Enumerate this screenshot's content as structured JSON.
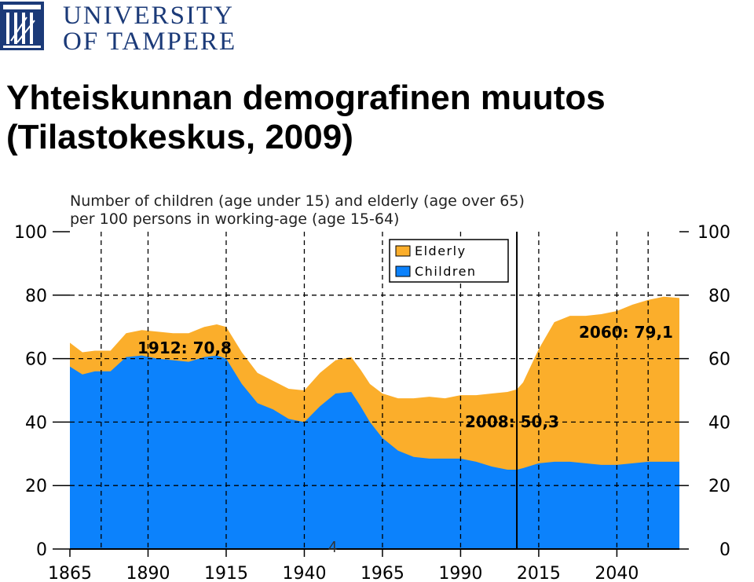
{
  "logo": {
    "line1": "UNIVERSITY",
    "line2": "OF TAMPERE"
  },
  "slide": {
    "title_line1": "Yhteiskunnan demografinen muutos",
    "title_line2": "(Tilastokeskus, 2009)",
    "page_number": "4"
  },
  "colors": {
    "elderly": "#FBAE2B",
    "children": "#0C82FC",
    "logo_blue": "#1b3a78"
  },
  "chart_data": {
    "type": "area",
    "stacked": true,
    "title": "Number of children (age under 15) and elderly (age over 65)",
    "subtitle": "per 100 persons in working-age (age 15-64)",
    "xlim": [
      1865,
      2060
    ],
    "ylim": [
      0,
      100
    ],
    "x_ticks": [
      1865,
      1890,
      1915,
      1940,
      1965,
      1990,
      2015,
      2040
    ],
    "y_ticks": [
      0,
      20,
      40,
      60,
      80,
      100
    ],
    "grid": true,
    "legend_position": "top-right",
    "x": [
      1865,
      1869,
      1873,
      1878,
      1883,
      1888,
      1893,
      1898,
      1903,
      1908,
      1912,
      1915,
      1920,
      1925,
      1930,
      1935,
      1940,
      1945,
      1950,
      1955,
      1958,
      1961,
      1965,
      1970,
      1975,
      1980,
      1985,
      1990,
      1995,
      2000,
      2005,
      2008,
      2010,
      2015,
      2020,
      2025,
      2030,
      2035,
      2040,
      2045,
      2050,
      2055,
      2060
    ],
    "series": [
      {
        "name": "Children",
        "color": "#0C82FC",
        "values": [
          57.5,
          55,
          56,
          56,
          60.5,
          61,
          60,
          59.5,
          59,
          60.5,
          61,
          60,
          52,
          46,
          44,
          41,
          40,
          45,
          49,
          49.5,
          45,
          40,
          35,
          31,
          29,
          28.5,
          28.5,
          28.5,
          27.5,
          26,
          25,
          25,
          25.5,
          27,
          27.5,
          27.5,
          27,
          26.5,
          26.5,
          27,
          27.5,
          27.5,
          27.5
        ]
      },
      {
        "name": "Elderly",
        "color": "#FBAE2B",
        "values": [
          7.5,
          7,
          6.5,
          6.5,
          7.5,
          8,
          8.5,
          8.5,
          9,
          9.5,
          9.8,
          10,
          10,
          9.5,
          9,
          9.5,
          10,
          10.5,
          10.5,
          11,
          11.5,
          12,
          14,
          16.5,
          18.5,
          19.5,
          19,
          20,
          21,
          23,
          24.5,
          25.3,
          27,
          36,
          44,
          46,
          46.5,
          47.5,
          48.5,
          50,
          51,
          52,
          51.6
        ]
      }
    ],
    "annotations": [
      "1912: 70,8",
      "2008: 50,3",
      "2060: 79,1"
    ],
    "marker_year": 2008
  }
}
